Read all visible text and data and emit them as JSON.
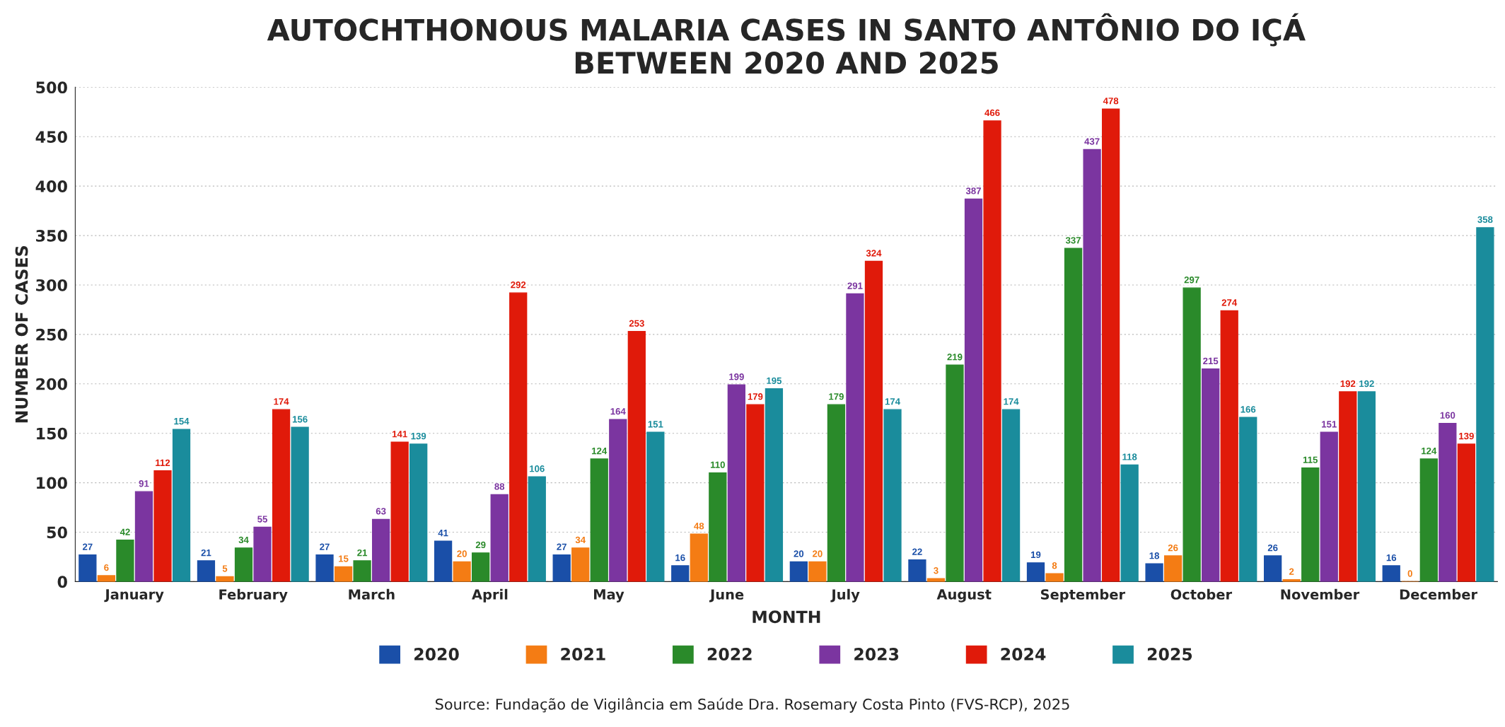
{
  "chart_data": {
    "type": "bar",
    "title": "AUTOCHTHONOUS MALARIA CASES IN SANTO ANTÔNIO DO IÇÁ\nBETWEEN 2020 AND 2025",
    "xlabel": "MONTH",
    "ylabel": "NUMBER OF CASES",
    "categories": [
      "January",
      "February",
      "March",
      "April",
      "May",
      "June",
      "July",
      "August",
      "September",
      "October",
      "November",
      "December"
    ],
    "series": [
      {
        "name": "2020",
        "color": "#1a4fa8",
        "values": [
          27,
          21,
          27,
          41,
          27,
          16,
          20,
          22,
          19,
          18,
          26,
          16
        ]
      },
      {
        "name": "2021",
        "color": "#f47c14",
        "values": [
          6,
          5,
          15,
          20,
          34,
          48,
          20,
          3,
          8,
          26,
          2,
          0
        ]
      },
      {
        "name": "2022",
        "color": "#2a8a2a",
        "values": [
          42,
          34,
          21,
          29,
          124,
          110,
          179,
          219,
          337,
          297,
          115,
          124
        ]
      },
      {
        "name": "2023",
        "color": "#7b35a0",
        "values": [
          91,
          55,
          63,
          88,
          164,
          199,
          291,
          387,
          437,
          215,
          151,
          160
        ]
      },
      {
        "name": "2024",
        "color": "#e01a0a",
        "values": [
          112,
          174,
          141,
          292,
          253,
          179,
          324,
          466,
          478,
          274,
          192,
          139
        ]
      },
      {
        "name": "2025",
        "color": "#1a8c9c",
        "values": [
          154,
          156,
          139,
          106,
          151,
          195,
          174,
          174,
          118,
          166,
          192,
          358
        ]
      }
    ],
    "ylim": [
      0,
      500
    ],
    "yticks": [
      0,
      50,
      100,
      150,
      200,
      250,
      300,
      350,
      400,
      450,
      500
    ],
    "grid": "y",
    "legend": "bottom",
    "data_labels": true,
    "annotations": [
      "Source: Fundação de Vigilância em Saúde Dra. Rosemary Costa Pinto (FVS-RCP), 2025"
    ]
  }
}
